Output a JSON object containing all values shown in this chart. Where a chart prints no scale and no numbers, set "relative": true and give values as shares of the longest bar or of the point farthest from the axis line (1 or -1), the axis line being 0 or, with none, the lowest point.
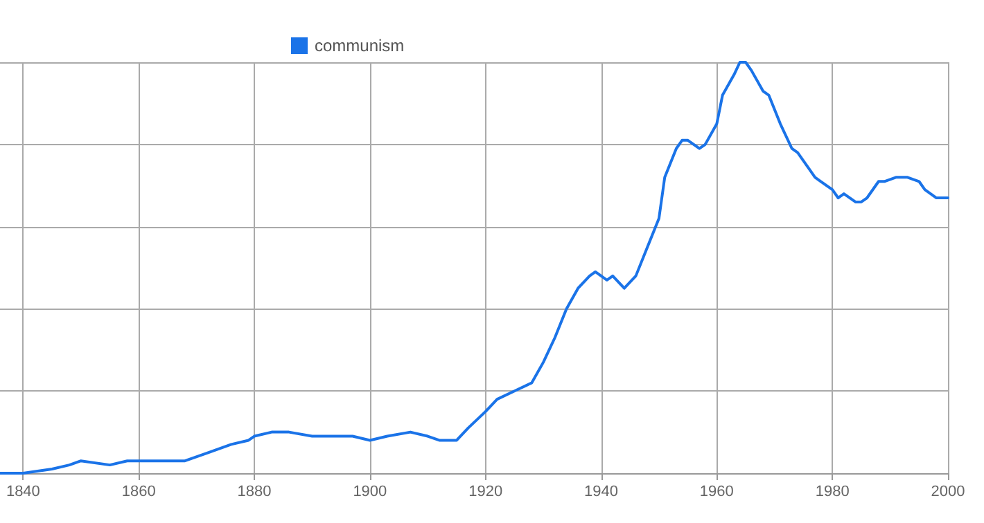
{
  "chart_data": {
    "type": "line",
    "relative": true,
    "x": [
      1836,
      1840,
      1845,
      1848,
      1850,
      1855,
      1858,
      1862,
      1865,
      1868,
      1872,
      1876,
      1879,
      1880,
      1883,
      1886,
      1890,
      1894,
      1897,
      1900,
      1903,
      1907,
      1910,
      1912,
      1915,
      1917,
      1920,
      1922,
      1925,
      1928,
      1930,
      1932,
      1934,
      1936,
      1938,
      1939,
      1941,
      1942,
      1944,
      1946,
      1948,
      1950,
      1951,
      1953,
      1954,
      1955,
      1957,
      1958,
      1960,
      1961,
      1963,
      1964,
      1965,
      1966,
      1968,
      1969,
      1971,
      1973,
      1974,
      1976,
      1977,
      1978,
      1980,
      1981,
      1982,
      1984,
      1985,
      1986,
      1988,
      1989,
      1991,
      1993,
      1995,
      1996,
      1998,
      2000
    ],
    "series": [
      {
        "name": "communism",
        "color": "#1a73e8",
        "values": [
          0,
          0,
          0.01,
          0.02,
          0.03,
          0.02,
          0.03,
          0.03,
          0.03,
          0.03,
          0.05,
          0.07,
          0.08,
          0.09,
          0.1,
          0.1,
          0.09,
          0.09,
          0.09,
          0.08,
          0.09,
          0.1,
          0.09,
          0.08,
          0.08,
          0.11,
          0.15,
          0.18,
          0.2,
          0.22,
          0.27,
          0.33,
          0.4,
          0.45,
          0.48,
          0.49,
          0.47,
          0.48,
          0.45,
          0.48,
          0.55,
          0.62,
          0.72,
          0.79,
          0.81,
          0.81,
          0.79,
          0.8,
          0.85,
          0.92,
          0.97,
          1,
          1,
          0.98,
          0.93,
          0.92,
          0.85,
          0.79,
          0.78,
          0.74,
          0.72,
          0.71,
          0.69,
          0.67,
          0.68,
          0.66,
          0.66,
          0.67,
          0.71,
          0.71,
          0.72,
          0.72,
          0.71,
          0.69,
          0.67,
          0.67
        ]
      }
    ],
    "xlim": [
      1836,
      2000
    ],
    "xticks": [
      1840,
      1860,
      1880,
      1900,
      1920,
      1940,
      1960,
      1980,
      2000
    ],
    "grid": true,
    "legend": "top",
    "marker": "none",
    "line_style": "solid"
  }
}
